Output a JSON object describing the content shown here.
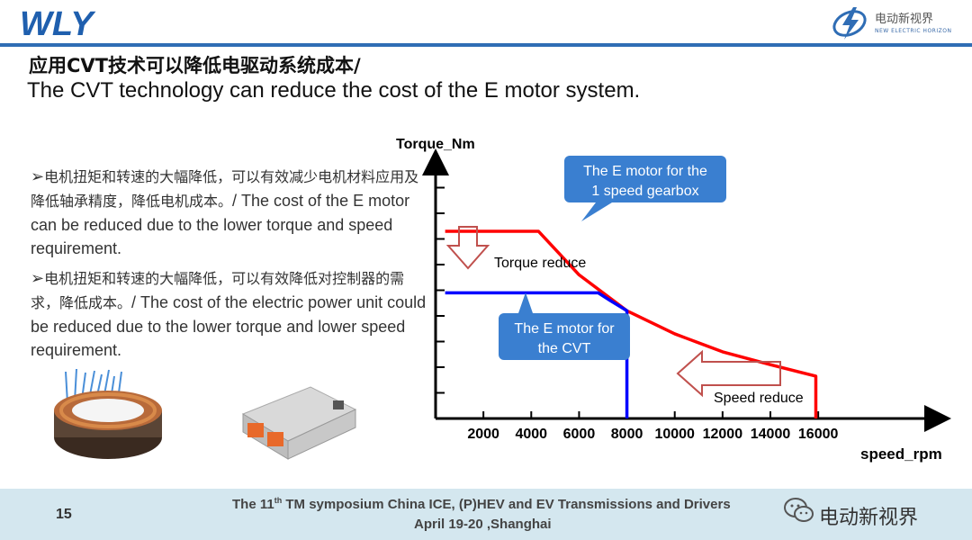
{
  "header": {
    "logo_text": "WLY",
    "brand_cn": "电动新视界",
    "brand_en": "NEW ELECTRIC HORIZON",
    "accent_color": "#2f6db5"
  },
  "title": {
    "cn": "应用CVT技术可以降低电驱动系统成本/",
    "en": "The CVT technology can reduce the cost of the E motor system."
  },
  "bullets": [
    {
      "marker": "➢",
      "cn": "电机扭矩和转速的大幅降低，可以有效减少电机材料应用及降低轴承精度，降低电机成本。",
      "en": "/ The cost of the E motor can be reduced due to the lower torque  and speed requirement."
    },
    {
      "marker": "➢",
      "cn": "电机扭矩和转速的大幅降低，可以有效降低对控制器的需求，降低成本。",
      "en": "/ The cost of the electric power unit could be reduced due to the lower torque and  lower speed requirement."
    }
  ],
  "images": {
    "stator": "motor-stator-photo",
    "inverter": "inverter-photo"
  },
  "chart_data": {
    "type": "line",
    "ylabel": "Torque_Nm",
    "xlabel": "speed_rpm",
    "x_ticks": [
      2000,
      4000,
      6000,
      8000,
      10000,
      12000,
      14000,
      16000
    ],
    "xlim": [
      0,
      21000
    ],
    "ylim": [
      0,
      10
    ],
    "y_ticks_count": 9,
    "y_tick_labels": false,
    "series": [
      {
        "name": "The E motor for the 1 speed gearbox",
        "color": "#ff0000",
        "points": [
          [
            400,
            7.3
          ],
          [
            4300,
            7.3
          ],
          [
            6000,
            5.6
          ],
          [
            8000,
            4.2
          ],
          [
            10000,
            3.3
          ],
          [
            12000,
            2.6
          ],
          [
            14000,
            2.1
          ],
          [
            15900,
            1.65
          ],
          [
            15900,
            0
          ]
        ]
      },
      {
        "name": "The E motor for the CVT",
        "color": "#0000ff",
        "points": [
          [
            400,
            4.9
          ],
          [
            6800,
            4.9
          ],
          [
            7300,
            4.6
          ],
          [
            8000,
            4.2
          ],
          [
            8000,
            0
          ]
        ]
      }
    ],
    "annotations": [
      {
        "text": "Torque reduce",
        "arrow": "down"
      },
      {
        "text": "Speed reduce",
        "arrow": "left"
      }
    ],
    "callouts": [
      {
        "line1": "The E motor for the",
        "line2": "1 speed gearbox",
        "color": "#3a7fd0"
      },
      {
        "line1": "The E motor for",
        "line2": "the CVT",
        "color": "#3a7fd0"
      }
    ],
    "arrow_color": "#c0504d",
    "grid": false
  },
  "footer": {
    "page_number": "15",
    "line1_prefix": "The 11",
    "line1_sup": "th",
    "line1_suffix": " TM symposium China ICE, (P)HEV and EV Transmissions and Drivers",
    "line2": "April 19-20 ,Shanghai",
    "wechat_label": "电动新视界",
    "background": "#d4e7ef"
  }
}
